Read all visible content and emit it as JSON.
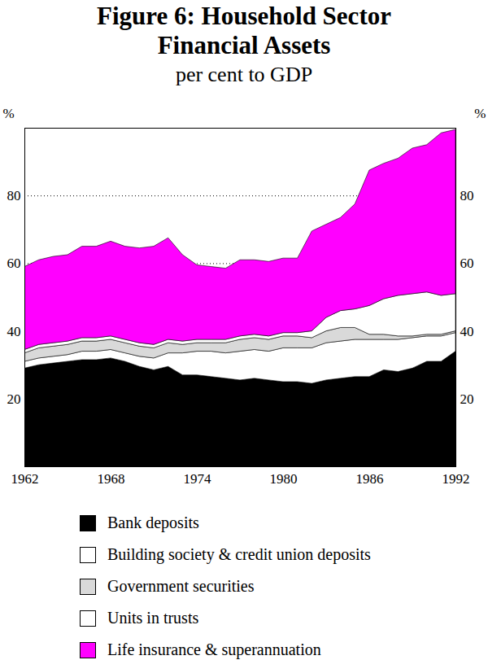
{
  "chart_data": {
    "type": "area",
    "stacked": true,
    "title": "Figure 6: Household Sector Financial Assets",
    "subtitle": "per cent to GDP",
    "y_label": "%",
    "x": [
      1962,
      1963,
      1964,
      1965,
      1966,
      1967,
      1968,
      1969,
      1970,
      1971,
      1972,
      1973,
      1974,
      1975,
      1976,
      1977,
      1978,
      1979,
      1980,
      1981,
      1982,
      1983,
      1984,
      1985,
      1986,
      1987,
      1988,
      1989,
      1990,
      1991,
      1992
    ],
    "series": [
      {
        "name": "Bank deposits",
        "color": "#000000",
        "values": [
          29,
          30,
          30.5,
          31,
          31.5,
          31.5,
          32,
          31,
          29.5,
          28.5,
          29.5,
          27,
          27,
          26.5,
          26,
          25.5,
          26,
          25.5,
          25,
          25,
          24.5,
          25.5,
          26,
          26.5,
          26.5,
          28.5,
          28,
          29,
          31,
          31,
          34
        ]
      },
      {
        "name": "Building society & credit union deposits",
        "color": "#ffffff",
        "values": [
          2,
          2,
          2,
          2,
          2.5,
          2.5,
          2.5,
          2.5,
          3,
          3.5,
          4,
          6.5,
          7,
          7.5,
          7.5,
          8.5,
          8.5,
          8.5,
          10,
          10,
          10.5,
          11,
          11,
          11,
          11,
          9,
          9.5,
          9,
          7.5,
          7.5,
          5.5
        ]
      },
      {
        "name": "Government securities",
        "color": "#d9d9d9",
        "values": [
          2.5,
          3,
          3,
          3,
          3,
          3,
          3,
          3,
          3,
          3,
          3,
          2.5,
          2.5,
          2.5,
          3,
          3.5,
          3.5,
          3.5,
          3.5,
          3.5,
          3,
          3.5,
          4,
          3.5,
          1.5,
          1.5,
          1,
          0.5,
          0.5,
          0.5,
          0.5
        ]
      },
      {
        "name": "Units in trusts",
        "color": "#ffffff",
        "values": [
          1,
          1,
          1,
          1,
          1,
          1,
          1,
          1,
          1,
          1,
          1,
          1,
          1,
          1,
          1,
          1,
          1,
          1,
          1,
          1,
          2,
          4,
          5,
          5.5,
          8.5,
          10.5,
          12,
          12.5,
          12.5,
          11.5,
          11
        ]
      },
      {
        "name": "Life insurance & superannuation",
        "color": "#ff00ff",
        "values": [
          24.5,
          25,
          25.5,
          25.5,
          27,
          27,
          28,
          27.5,
          28,
          29,
          30,
          25.5,
          22,
          21.5,
          21,
          22.5,
          22,
          22,
          22,
          22,
          29.5,
          27.5,
          27.5,
          31,
          40,
          40,
          40.5,
          43,
          43.5,
          48,
          48.5
        ]
      }
    ],
    "xlim": [
      1962,
      1992
    ],
    "xticks": [
      1962,
      1968,
      1974,
      1980,
      1986,
      1992
    ],
    "ylim": [
      0,
      100
    ],
    "yticks": [
      20,
      40,
      60,
      80
    ],
    "grid": true,
    "legend": "bottom"
  }
}
